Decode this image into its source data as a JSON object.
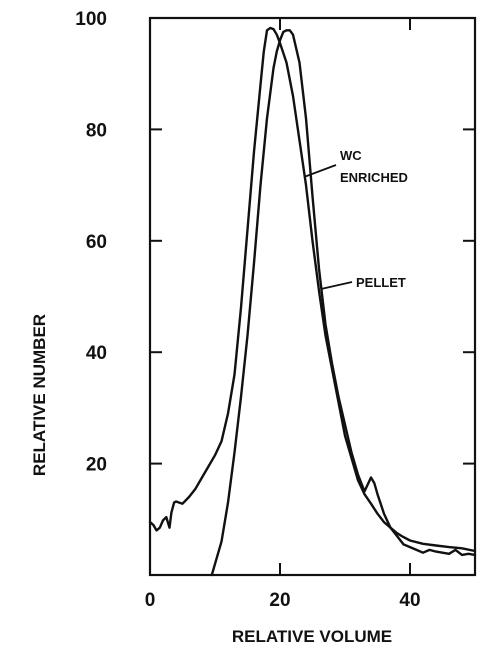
{
  "chart_data": {
    "type": "line",
    "title": "",
    "xlabel": "RELATIVE VOLUME",
    "ylabel": "RELATIVE NUMBER",
    "xlim": [
      0,
      50
    ],
    "ylim": [
      0,
      100
    ],
    "x_ticks": [
      0,
      20,
      40
    ],
    "x_tick_labels": [
      "0",
      "20",
      "40"
    ],
    "y_ticks": [
      20,
      40,
      60,
      80,
      100
    ],
    "y_tick_labels": [
      "20",
      "40",
      "60",
      "80",
      "100"
    ],
    "grid": false,
    "legend": "none",
    "series": [
      {
        "name": "WC ENRICHED",
        "x": [
          0,
          0.5,
          1,
          1.5,
          2,
          2.5,
          3,
          3.3,
          3.7,
          4,
          5,
          6,
          7,
          8,
          9,
          10,
          11,
          12,
          13,
          14,
          15,
          16,
          17,
          17.5,
          18,
          18.5,
          19,
          19.5,
          20,
          21,
          22,
          23,
          24,
          25,
          26,
          27,
          28,
          29,
          30,
          31,
          32,
          33,
          34,
          35,
          36,
          37,
          38,
          39,
          40,
          42,
          44,
          46,
          48,
          50
        ],
        "y": [
          9.5,
          9.0,
          8.0,
          8.5,
          9.8,
          10.4,
          8.5,
          11.2,
          13.0,
          13.2,
          12.8,
          14.0,
          15.5,
          17.5,
          19.5,
          21.5,
          24.0,
          29.0,
          36.0,
          48.0,
          62.0,
          76.0,
          88.0,
          94.0,
          97.8,
          98.2,
          98.0,
          97.0,
          95.5,
          92.0,
          86.0,
          78.0,
          70.0,
          60.0,
          51.0,
          43.0,
          37.0,
          31.0,
          25.0,
          21.0,
          17.0,
          14.5,
          12.8,
          11.0,
          9.5,
          8.5,
          7.5,
          6.8,
          6.2,
          5.6,
          5.3,
          5.0,
          4.8,
          4.3
        ]
      },
      {
        "name": "PELLET",
        "x": [
          9.5,
          10,
          11,
          12,
          13,
          14,
          15,
          16,
          17,
          18,
          19,
          19.5,
          20,
          20.5,
          21,
          21.5,
          22,
          23,
          24,
          25,
          26,
          27,
          28,
          29,
          30,
          31,
          32,
          33,
          34,
          34.5,
          35,
          36,
          37,
          38,
          39,
          40,
          41,
          42,
          43,
          44,
          45,
          46,
          47,
          48,
          49,
          50
        ],
        "y": [
          0,
          2.0,
          6.0,
          13.0,
          22.0,
          32.0,
          43.0,
          56.0,
          70.0,
          82.0,
          91.0,
          94.0,
          96.0,
          97.5,
          97.8,
          97.8,
          97.0,
          92.0,
          82.0,
          68.0,
          55.0,
          45.0,
          38.0,
          32.0,
          27.0,
          22.0,
          18.0,
          15.0,
          17.5,
          16.5,
          14.5,
          11.0,
          8.5,
          7.0,
          5.5,
          5.0,
          4.5,
          4.0,
          4.5,
          4.2,
          4.0,
          3.8,
          4.5,
          3.6,
          3.8,
          3.6
        ]
      }
    ],
    "annotations": [
      {
        "line1": "WC",
        "line2": "ENRICHED"
      },
      {
        "line1": "PELLET"
      }
    ]
  }
}
